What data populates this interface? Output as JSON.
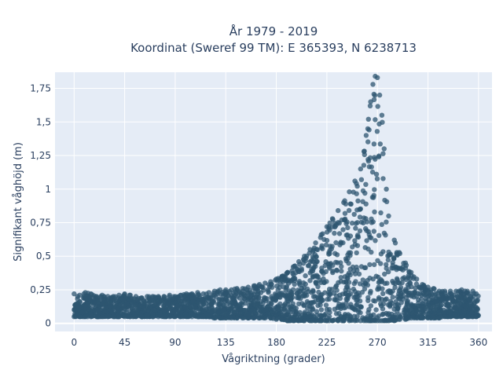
{
  "chart_data": {
    "type": "scatter",
    "title_line1": "År 1979 - 2019",
    "title_line2": "Koordinat (Sweref 99 TM): E 365393, N 6238713",
    "xlabel": "Vågriktning (grader)",
    "ylabel": "Signifikant våghöjd (m)",
    "xlim": [
      -17,
      372
    ],
    "ylim": [
      -0.06,
      1.87
    ],
    "x_ticks": [
      0,
      45,
      90,
      135,
      180,
      225,
      270,
      315,
      360
    ],
    "x_tick_labels": [
      "0",
      "45",
      "90",
      "135",
      "180",
      "225",
      "270",
      "315",
      "360"
    ],
    "y_ticks": [
      0,
      0.25,
      0.5,
      0.75,
      1,
      1.25,
      1.5,
      1.75
    ],
    "y_tick_labels": [
      "0",
      "0,25",
      "0,5",
      "0,75",
      "1",
      "1,25",
      "1,5",
      "1,75"
    ],
    "grid": true,
    "marker_color": "#2e5570",
    "plot_bg": "#e5ecf6",
    "series": [
      {
        "x": [
          0,
          5,
          10,
          15,
          20,
          25,
          30,
          35,
          40,
          45,
          50,
          55,
          60,
          65,
          70,
          75,
          80,
          85,
          90,
          95,
          100,
          105,
          110,
          115,
          120,
          125,
          130,
          135,
          140,
          145,
          150,
          155,
          160,
          165,
          170,
          175,
          180,
          185,
          190,
          195,
          200,
          205,
          210,
          215,
          220,
          225,
          230,
          235,
          240,
          245,
          250,
          255,
          258,
          260,
          262,
          264,
          266,
          268,
          270,
          272,
          274,
          276,
          278,
          280,
          285,
          290,
          295,
          300,
          305,
          310,
          315,
          320,
          325,
          330,
          335,
          340,
          345,
          350,
          355,
          358
        ],
        "y_max": [
          0.22,
          0.21,
          0.23,
          0.22,
          0.2,
          0.21,
          0.2,
          0.2,
          0.21,
          0.22,
          0.21,
          0.2,
          0.19,
          0.2,
          0.2,
          0.2,
          0.2,
          0.21,
          0.2,
          0.21,
          0.22,
          0.22,
          0.23,
          0.22,
          0.23,
          0.24,
          0.25,
          0.25,
          0.25,
          0.26,
          0.26,
          0.27,
          0.28,
          0.29,
          0.3,
          0.31,
          0.33,
          0.35,
          0.38,
          0.42,
          0.46,
          0.5,
          0.55,
          0.6,
          0.66,
          0.72,
          0.78,
          0.84,
          0.9,
          0.98,
          1.06,
          1.15,
          1.28,
          1.4,
          1.52,
          1.65,
          1.78,
          1.84,
          1.83,
          1.7,
          1.55,
          1.3,
          1.0,
          0.8,
          0.62,
          0.52,
          0.45,
          0.38,
          0.33,
          0.29,
          0.27,
          0.26,
          0.24,
          0.24,
          0.24,
          0.24,
          0.25,
          0.24,
          0.24,
          0.22
        ],
        "y_min": [
          0.05,
          0.05,
          0.05,
          0.05,
          0.05,
          0.05,
          0.05,
          0.05,
          0.05,
          0.05,
          0.05,
          0.05,
          0.05,
          0.05,
          0.05,
          0.05,
          0.05,
          0.05,
          0.05,
          0.05,
          0.05,
          0.05,
          0.05,
          0.05,
          0.05,
          0.04,
          0.04,
          0.04,
          0.04,
          0.04,
          0.04,
          0.04,
          0.04,
          0.04,
          0.04,
          0.04,
          0.03,
          0.03,
          0.02,
          0.02,
          0.02,
          0.02,
          0.02,
          0.02,
          0.02,
          0.02,
          0.02,
          0.02,
          0.02,
          0.02,
          0.02,
          0.02,
          0.02,
          0.02,
          0.02,
          0.02,
          0.02,
          0.02,
          0.02,
          0.02,
          0.02,
          0.02,
          0.02,
          0.02,
          0.02,
          0.03,
          0.03,
          0.04,
          0.04,
          0.04,
          0.04,
          0.04,
          0.04,
          0.05,
          0.05,
          0.05,
          0.05,
          0.05,
          0.05,
          0.05
        ]
      }
    ]
  }
}
